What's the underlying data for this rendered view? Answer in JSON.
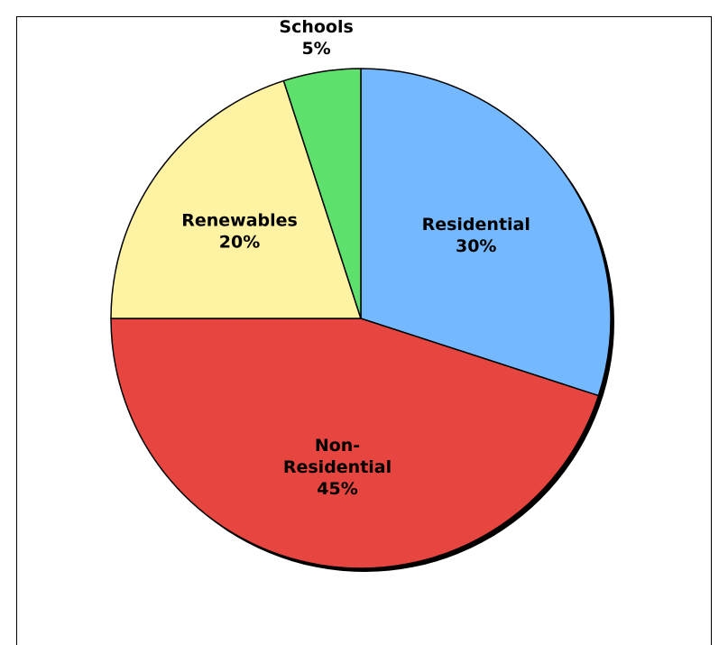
{
  "chart_data": {
    "type": "pie",
    "title": "",
    "start_angle_deg": 0,
    "direction": "clockwise",
    "slices": [
      {
        "label_lines": [
          "Residential"
        ],
        "value": 30,
        "value_label": "30%",
        "color": "#74B9FF"
      },
      {
        "label_lines": [
          "Non-",
          "Residential"
        ],
        "value": 45,
        "value_label": "45%",
        "color": "#E64540"
      },
      {
        "label_lines": [
          "Renewables"
        ],
        "value": 20,
        "value_label": "20%",
        "color": "#FFF2A2"
      },
      {
        "label_lines": [
          "Schools"
        ],
        "value": 5,
        "value_label": "5%",
        "color": "#5DE16C"
      }
    ]
  }
}
